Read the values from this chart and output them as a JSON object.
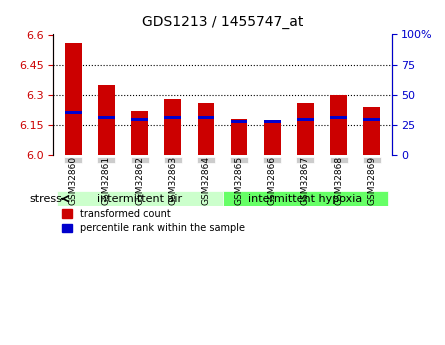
{
  "title": "GDS1213 / 1455747_at",
  "samples": [
    "GSM32860",
    "GSM32861",
    "GSM32862",
    "GSM32863",
    "GSM32864",
    "GSM32865",
    "GSM32866",
    "GSM32867",
    "GSM32868",
    "GSM32869"
  ],
  "red_values": [
    6.56,
    6.35,
    6.22,
    6.28,
    6.26,
    6.18,
    6.17,
    6.26,
    6.3,
    6.24
  ],
  "blue_values": [
    6.21,
    6.19,
    6.18,
    6.19,
    6.19,
    6.17,
    6.17,
    6.18,
    6.19,
    6.18
  ],
  "ymin": 6.0,
  "ymax": 6.6,
  "yticks": [
    6.0,
    6.15,
    6.3,
    6.45,
    6.6
  ],
  "right_yticks": [
    0,
    25,
    50,
    75,
    100
  ],
  "group1_label": "intermittent air",
  "group2_label": "intermittent hypoxia",
  "group1_indices": [
    0,
    1,
    2,
    3,
    4
  ],
  "group2_indices": [
    5,
    6,
    7,
    8,
    9
  ],
  "stress_label": "stress",
  "legend_red": "transformed count",
  "legend_blue": "percentile rank within the sample",
  "bar_color_red": "#cc0000",
  "bar_color_blue": "#0000cc",
  "group_bg_color1": "#ccffcc",
  "group_bg_color2": "#66ff66",
  "tick_label_bg": "#cccccc",
  "bar_width": 0.5,
  "blue_bar_height": 0.015
}
